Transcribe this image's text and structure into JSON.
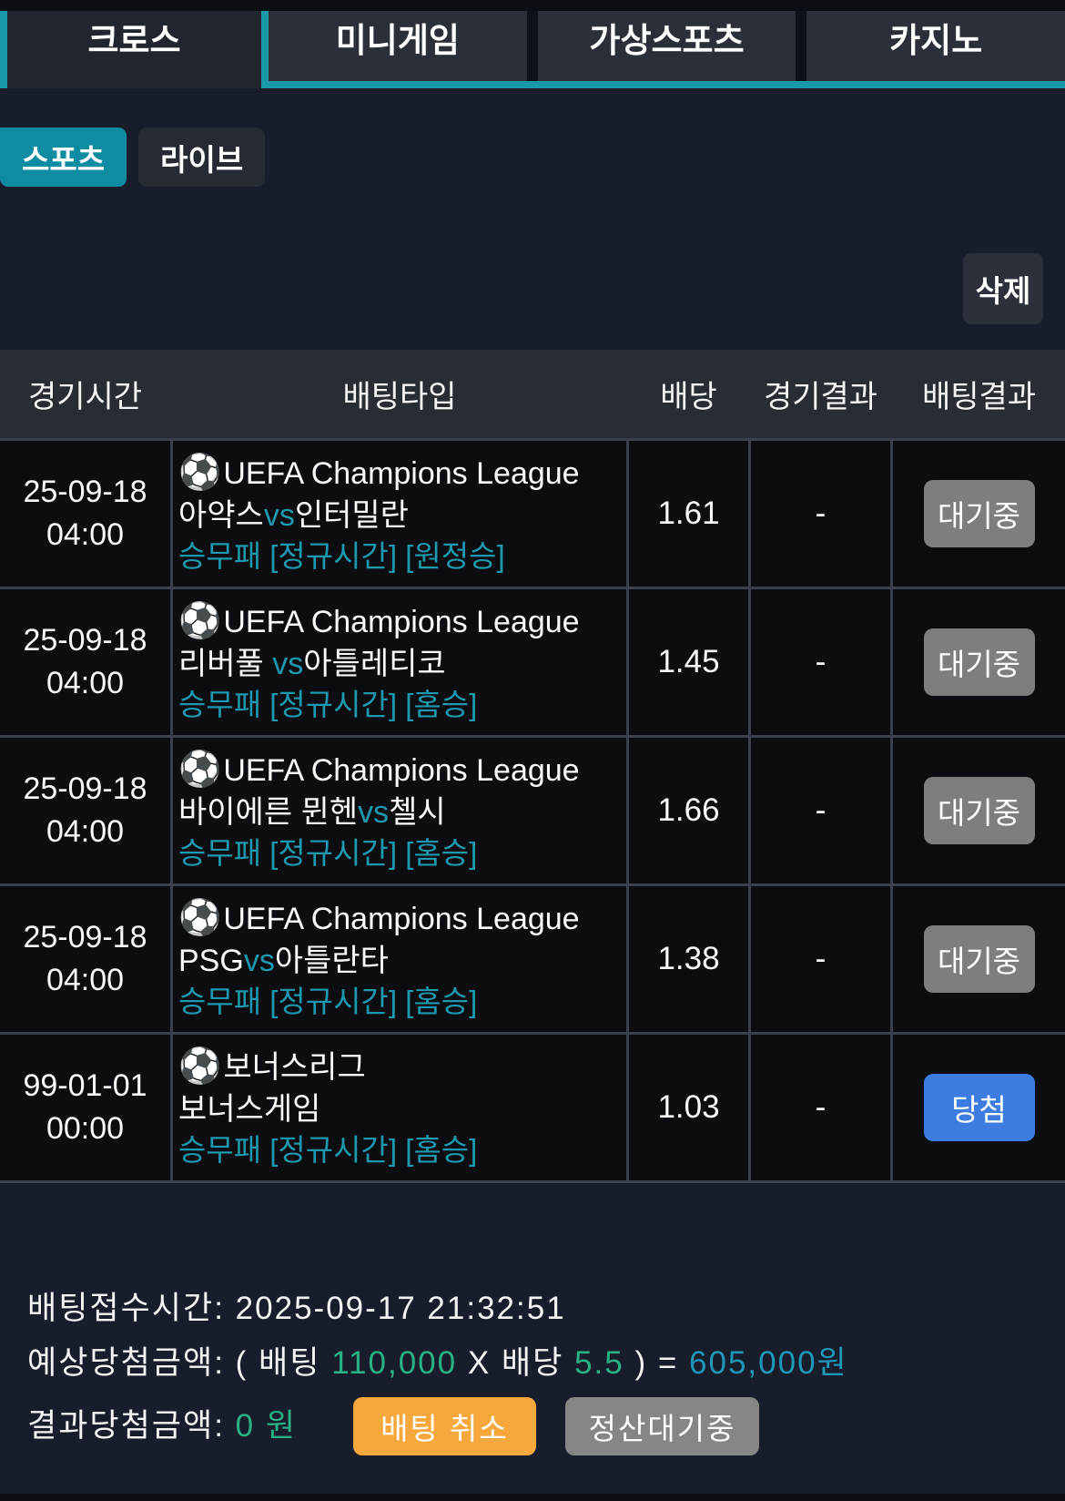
{
  "colors": {
    "accent_teal": "#1b98a8",
    "sports_button_bg": "#0e8da2",
    "pick_text_teal": "#1e98ae",
    "badge_pending_gray": "#7e7e7e",
    "badge_win_blue": "#3d7de2",
    "cancel_orange": "#f6a83c",
    "settle_gray": "#868686",
    "amount_green": "#29b185",
    "amount_teal": "#1f97b6"
  },
  "icons": {
    "soccer": "⚽"
  },
  "tabs": [
    {
      "label": "크로스",
      "active": true
    },
    {
      "label": "미니게임",
      "active": false
    },
    {
      "label": "가상스포츠",
      "active": false
    },
    {
      "label": "카지노",
      "active": false
    }
  ],
  "subtabs": [
    {
      "label": "스포츠",
      "active": true
    },
    {
      "label": "라이브",
      "active": false
    }
  ],
  "actions": {
    "delete_label": "삭제"
  },
  "table": {
    "headers": [
      "경기시간",
      "배팅타입",
      "배당",
      "경기결과",
      "배팅결과"
    ],
    "rows": [
      {
        "date": "25-09-18",
        "time": "04:00",
        "league": "UEFA Champions League",
        "home": "아약스",
        "vs": "vs",
        "away": "인터밀란",
        "pick": "승무패 [정규시간] [원정승]",
        "odds": "1.61",
        "result": "-",
        "status": "대기중"
      },
      {
        "date": "25-09-18",
        "time": "04:00",
        "league": "UEFA Champions League",
        "home": "리버풀 ",
        "vs": "vs",
        "away": "아틀레티코",
        "pick": "승무패 [정규시간] [홈승]",
        "odds": "1.45",
        "result": "-",
        "status": "대기중"
      },
      {
        "date": "25-09-18",
        "time": "04:00",
        "league": "UEFA Champions League",
        "home": "바이에른 뮌헨",
        "vs": "vs",
        "away": "첼시",
        "pick": "승무패 [정규시간] [홈승]",
        "odds": "1.66",
        "result": "-",
        "status": "대기중"
      },
      {
        "date": "25-09-18",
        "time": "04:00",
        "league": "UEFA Champions League",
        "home": "PSG",
        "vs": "vs",
        "away": "아틀란타",
        "pick": "승무패 [정규시간] [홈승]",
        "odds": "1.38",
        "result": "-",
        "status": "대기중"
      },
      {
        "date": "99-01-01",
        "time": "00:00",
        "league": "보너스리그",
        "home": "보너스게임",
        "vs": "",
        "away": "",
        "pick": "승무패 [정규시간] [홈승]",
        "odds": "1.03",
        "result": "-",
        "status": "당첨"
      }
    ]
  },
  "summary": {
    "receipt_label": "배팅접수시간:",
    "receipt_time": "2025-09-17 21:32:51",
    "expected_label": "예상당첨금액:",
    "expected_open": "( 배팅",
    "bet_amount": "110,000",
    "expected_mid": "X 배당",
    "total_odds": "5.5",
    "expected_close": ") =",
    "win_amount": "605,000원",
    "result_label": "결과당첨금액:",
    "result_amount": "0 원",
    "cancel_label": "배팅 취소",
    "settle_label": "정산대기중"
  }
}
